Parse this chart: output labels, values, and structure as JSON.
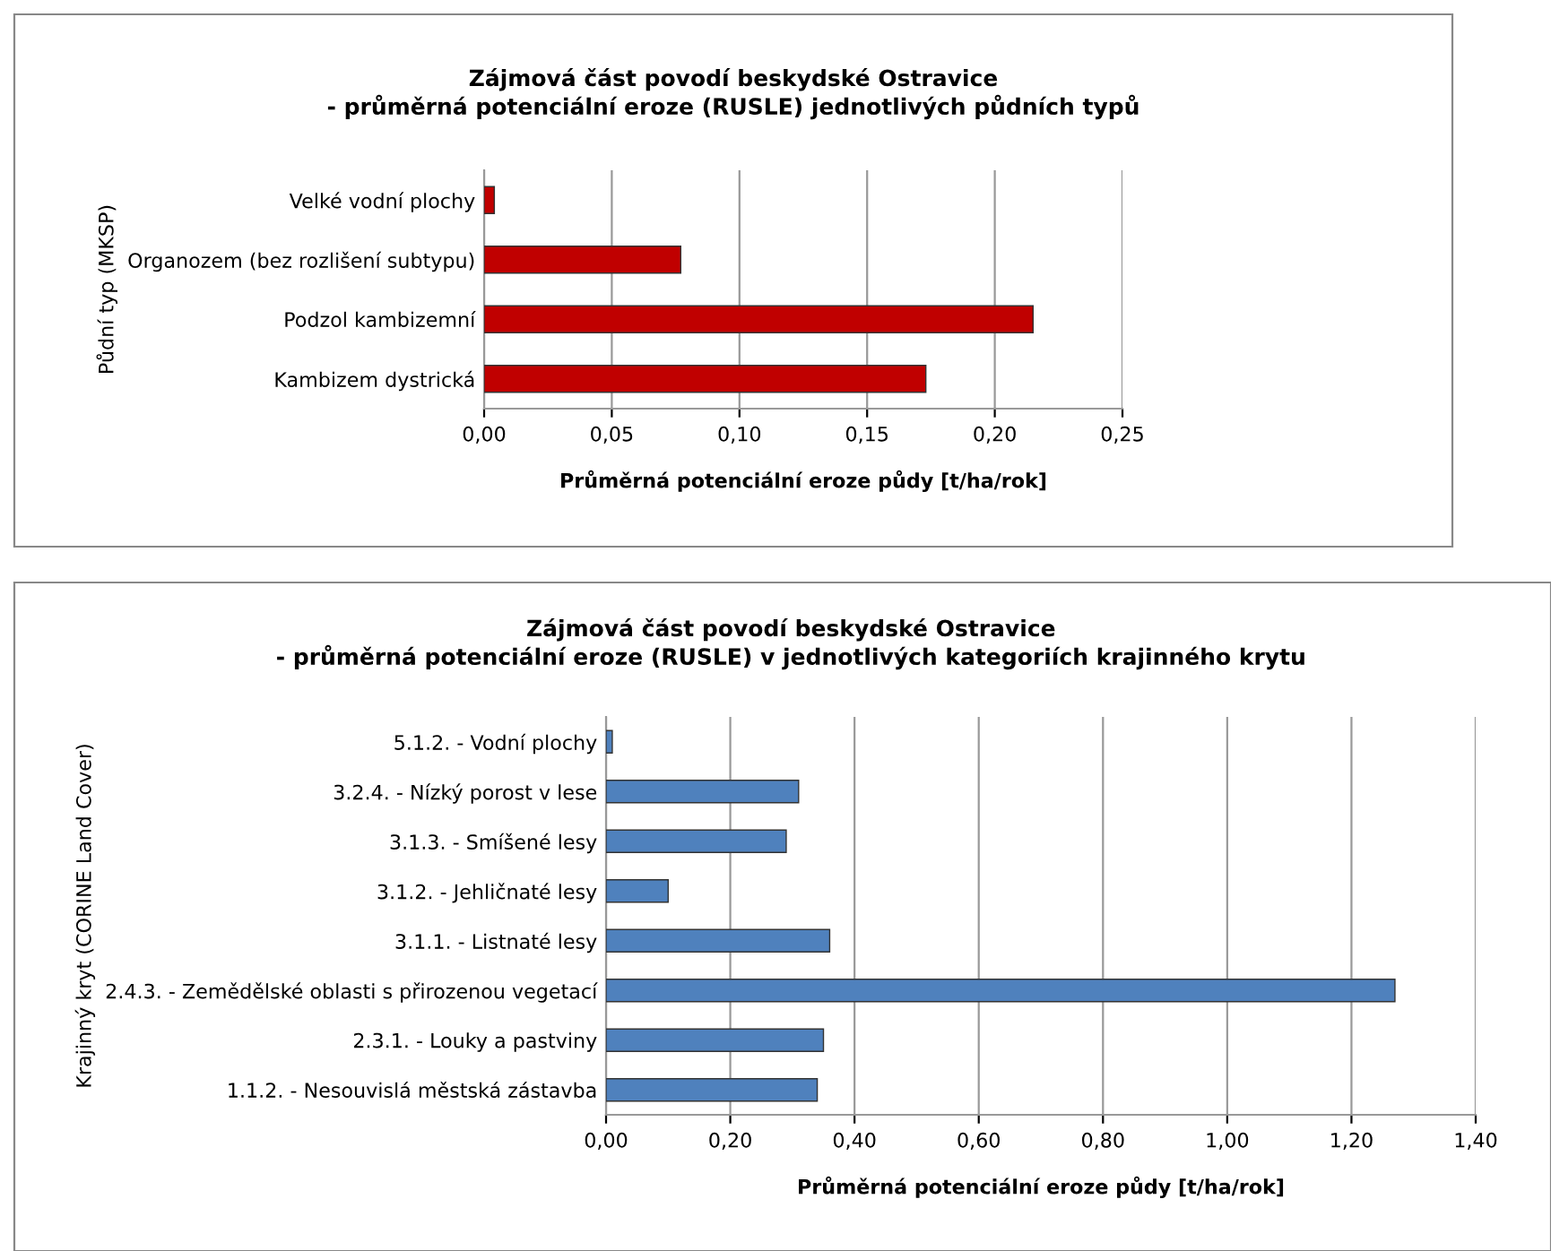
{
  "chart_data": [
    {
      "type": "bar",
      "orientation": "horizontal",
      "title": "Zájmová část povodí beskydské Ostravice\n- průměrná potenciální eroze (RUSLE) jednotlivých půdních typů",
      "xlabel": "Průměrná potenciální eroze půdy [t/ha/rok]",
      "ylabel": "Půdní typ (MKSP)",
      "categories": [
        "Velké vodní plochy",
        "Organozem (bez rozlišení subtypu)",
        "Podzol kambizemní",
        "Kambizem dystrická"
      ],
      "series": [
        {
          "color": "#c00000",
          "values": [
            0.004,
            0.077,
            0.215,
            0.173
          ]
        }
      ],
      "xlim": [
        0,
        0.25
      ],
      "xticks": [
        {
          "value": 0,
          "label": "0,00"
        },
        {
          "value": 0.05,
          "label": "0,05"
        },
        {
          "value": 0.1,
          "label": "0,10"
        },
        {
          "value": 0.15,
          "label": "0,15"
        },
        {
          "value": 0.2,
          "label": "0,20"
        },
        {
          "value": 0.25,
          "label": "0,25"
        }
      ],
      "grid": "x"
    },
    {
      "type": "bar",
      "orientation": "horizontal",
      "title": "Zájmová část povodí beskydské Ostravice\n- průměrná potenciální eroze (RUSLE) v jednotlivých kategoriích krajinného krytu",
      "xlabel": "Průměrná potenciální eroze půdy [t/ha/rok]",
      "ylabel": "Krajinný kryt (CORINE Land Cover)",
      "categories": [
        "5.1.2. - Vodní plochy",
        "3.2.4. - Nízký porost v lese",
        "3.1.3. - Smíšené lesy",
        "3.1.2. - Jehličnaté lesy",
        "3.1.1. - Listnaté lesy",
        "2.4.3. - Zemědělské oblasti s přirozenou vegetací",
        "2.3.1. - Louky a pastviny",
        "1.1.2. - Nesouvislá městská zástavba"
      ],
      "series": [
        {
          "color": "#4f81bd",
          "values": [
            0.01,
            0.31,
            0.29,
            0.1,
            0.36,
            1.27,
            0.35,
            0.34
          ]
        }
      ],
      "xlim": [
        0,
        1.4
      ],
      "xticks": [
        {
          "value": 0,
          "label": "0,00"
        },
        {
          "value": 0.2,
          "label": "0,20"
        },
        {
          "value": 0.4,
          "label": "0,40"
        },
        {
          "value": 0.6,
          "label": "0,60"
        },
        {
          "value": 0.8,
          "label": "0,80"
        },
        {
          "value": 1.0,
          "label": "1,00"
        },
        {
          "value": 1.2,
          "label": "1,20"
        },
        {
          "value": 1.4,
          "label": "1,40"
        }
      ],
      "grid": "x"
    }
  ]
}
